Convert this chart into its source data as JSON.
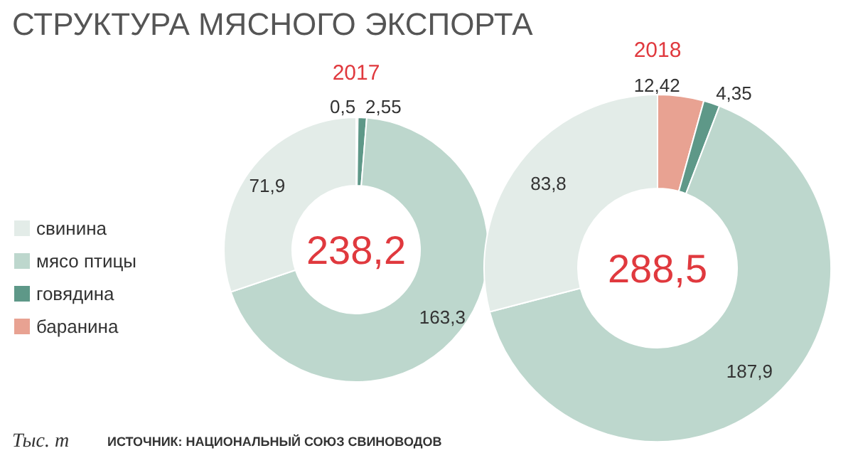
{
  "chart_data": [
    {
      "type": "other",
      "title": "СТРУКТУРА МЯСНОГО ЭКСПОРТА",
      "annotations": [
        "Тыс. т",
        "ИСТОЧНИК: НАЦИОНАЛЬНЫЙ СОЮЗ СВИНОВОДОВ"
      ]
    },
    {
      "type": "donut",
      "title": "2017",
      "categories": [
        "свинина",
        "мясо птицы",
        "говядина",
        "баранина"
      ],
      "values": [
        71.9,
        163.3,
        2.55,
        0.5
      ],
      "value_labels": [
        "71,9",
        "163,3",
        "2,55",
        "0,5"
      ],
      "colors": [
        "#e3ece8",
        "#bdd7cd",
        "#5e9888",
        "#e8a292"
      ],
      "annotations": [
        "238,2"
      ],
      "legend": "left"
    },
    {
      "type": "donut",
      "title": "2018",
      "values": [
        83.8,
        187.9,
        4.35,
        12.42
      ],
      "value_labels": [
        "83,8",
        "187,9",
        "4,35",
        "12,42"
      ],
      "colors": [
        "#e3ece8",
        "#bdd7cd",
        "#5e9888",
        "#e8a292"
      ],
      "annotations": [
        "288,5"
      ]
    }
  ]
}
